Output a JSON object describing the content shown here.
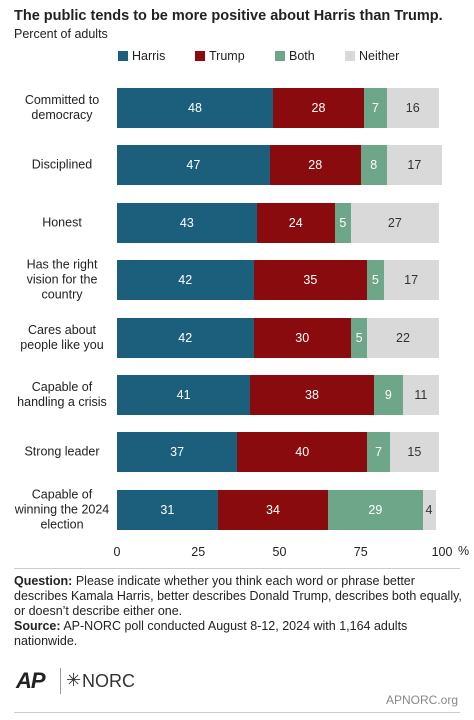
{
  "chart_data": {
    "type": "stacked-bar-horizontal",
    "title": "The public tends to be more positive about Harris than Trump.",
    "subtitle": "Percent of adults",
    "categories": [
      "Committed to democracy",
      "Disciplined",
      "Honest",
      "Has the right vision for the country",
      "Cares about people like you",
      "Capable of handling a crisis",
      "Strong leader",
      "Capable of winning the 2024 election"
    ],
    "series": [
      {
        "name": "Harris",
        "color": "#1c5f7d",
        "label_color": "#ffffff",
        "values": [
          48,
          47,
          43,
          42,
          42,
          41,
          37,
          31
        ]
      },
      {
        "name": "Trump",
        "color": "#8a0b0d",
        "label_color": "#ffffff",
        "values": [
          28,
          28,
          24,
          35,
          30,
          38,
          40,
          34
        ]
      },
      {
        "name": "Both",
        "color": "#6da689",
        "label_color": "#ffffff",
        "values": [
          7,
          8,
          5,
          5,
          5,
          9,
          7,
          29
        ]
      },
      {
        "name": "Neither",
        "color": "#d9d9d9",
        "label_color": "#333333",
        "values": [
          16,
          17,
          27,
          17,
          22,
          11,
          15,
          4
        ]
      }
    ],
    "xlim": [
      0,
      100
    ],
    "xticks": [
      0,
      25,
      50,
      75,
      100
    ],
    "xlabel": "%",
    "legend": "top",
    "notes": [
      {
        "label": "Question:",
        "text": "Please indicate whether you think each word or phrase better describes Kamala Harris, better describes Donald Trump, describes both equally, or doesn’t describe either one."
      },
      {
        "label": "Source:",
        "text": "AP-NORC poll conducted August 8-12, 2024 with 1,164 adults nationwide."
      }
    ],
    "logos": [
      "AP",
      "NORC"
    ],
    "website": "APNORC.org"
  }
}
